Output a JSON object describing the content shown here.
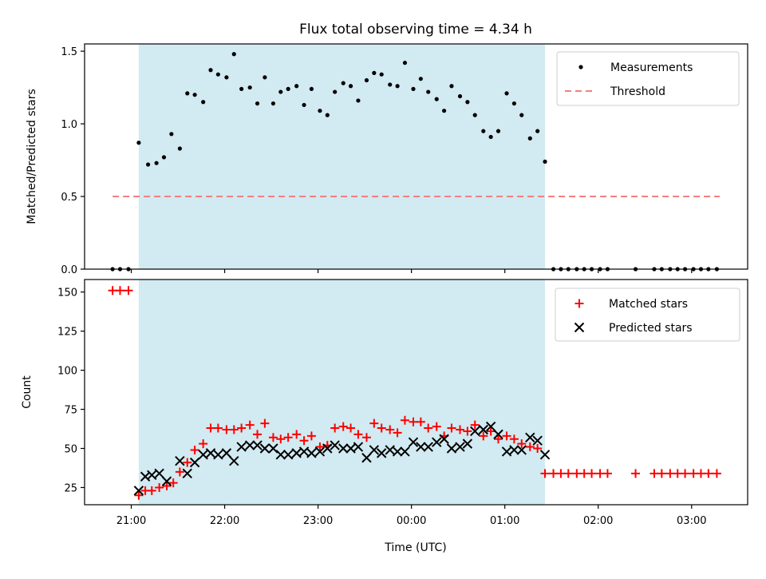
{
  "chart_data": {
    "title": "Flux total observing time = 4.34 h",
    "xlabel": "Time (UTC)",
    "x_units": "hours relative to 00:00 UTC of the night",
    "xlim": [
      -3.5,
      3.6
    ],
    "xticks": [
      {
        "value": -3,
        "label": "21:00"
      },
      {
        "value": -2,
        "label": "22:00"
      },
      {
        "value": -1,
        "label": "23:00"
      },
      {
        "value": 0,
        "label": "00:00"
      },
      {
        "value": 1,
        "label": "01:00"
      },
      {
        "value": 2,
        "label": "02:00"
      },
      {
        "value": 3,
        "label": "03:00"
      }
    ],
    "observing_window": {
      "start": -2.92,
      "end": 1.43,
      "color": "#add8e6"
    },
    "panels": [
      {
        "type": "scatter",
        "ylabel": "Matched/Predicted stars",
        "ylim": [
          0,
          1.55
        ],
        "yticks": [
          {
            "value": 0,
            "label": "0.0"
          },
          {
            "value": 0.5,
            "label": "0.5"
          },
          {
            "value": 1.0,
            "label": "1.0"
          },
          {
            "value": 1.5,
            "label": "1.5"
          }
        ],
        "legend": {
          "position": "upper right",
          "entries": [
            "Measurements",
            "Threshold"
          ]
        },
        "threshold": {
          "name": "Threshold",
          "value": 0.5,
          "x_range": [
            -3.2,
            3.3
          ],
          "color": "#f08080"
        },
        "series": [
          {
            "name": "Measurements",
            "color": "#000000",
            "marker": "dot",
            "points": [
              [
                -3.2,
                0
              ],
              [
                -3.12,
                0
              ],
              [
                -3.03,
                0
              ],
              [
                -2.92,
                0.87
              ],
              [
                -2.82,
                0.72
              ],
              [
                -2.73,
                0.73
              ],
              [
                -2.65,
                0.77
              ],
              [
                -2.57,
                0.93
              ],
              [
                -2.48,
                0.83
              ],
              [
                -2.4,
                1.21
              ],
              [
                -2.32,
                1.2
              ],
              [
                -2.23,
                1.15
              ],
              [
                -2.15,
                1.37
              ],
              [
                -2.07,
                1.34
              ],
              [
                -1.98,
                1.32
              ],
              [
                -1.9,
                1.48
              ],
              [
                -1.82,
                1.24
              ],
              [
                -1.73,
                1.25
              ],
              [
                -1.65,
                1.14
              ],
              [
                -1.57,
                1.32
              ],
              [
                -1.48,
                1.14
              ],
              [
                -1.4,
                1.22
              ],
              [
                -1.32,
                1.24
              ],
              [
                -1.23,
                1.26
              ],
              [
                -1.15,
                1.13
              ],
              [
                -1.07,
                1.24
              ],
              [
                -0.98,
                1.09
              ],
              [
                -0.9,
                1.06
              ],
              [
                -0.82,
                1.22
              ],
              [
                -0.73,
                1.28
              ],
              [
                -0.65,
                1.26
              ],
              [
                -0.57,
                1.16
              ],
              [
                -0.48,
                1.3
              ],
              [
                -0.4,
                1.35
              ],
              [
                -0.32,
                1.34
              ],
              [
                -0.23,
                1.27
              ],
              [
                -0.15,
                1.26
              ],
              [
                -0.07,
                1.42
              ],
              [
                0.02,
                1.24
              ],
              [
                0.1,
                1.31
              ],
              [
                0.18,
                1.22
              ],
              [
                0.27,
                1.17
              ],
              [
                0.35,
                1.09
              ],
              [
                0.43,
                1.26
              ],
              [
                0.52,
                1.19
              ],
              [
                0.6,
                1.15
              ],
              [
                0.68,
                1.06
              ],
              [
                0.77,
                0.95
              ],
              [
                0.85,
                0.91
              ],
              [
                0.93,
                0.95
              ],
              [
                1.02,
                1.21
              ],
              [
                1.1,
                1.14
              ],
              [
                1.18,
                1.06
              ],
              [
                1.27,
                0.9
              ],
              [
                1.35,
                0.95
              ],
              [
                1.43,
                0.74
              ],
              [
                1.52,
                0
              ],
              [
                1.6,
                0
              ],
              [
                1.68,
                0
              ],
              [
                1.77,
                0
              ],
              [
                1.85,
                0
              ],
              [
                1.93,
                0
              ],
              [
                2.02,
                0
              ],
              [
                2.1,
                0
              ],
              [
                2.4,
                0
              ],
              [
                2.6,
                0
              ],
              [
                2.68,
                0
              ],
              [
                2.77,
                0
              ],
              [
                2.85,
                0
              ],
              [
                2.93,
                0
              ],
              [
                3.02,
                0
              ],
              [
                3.1,
                0
              ],
              [
                3.18,
                0
              ],
              [
                3.27,
                0
              ]
            ]
          }
        ]
      },
      {
        "type": "scatter",
        "ylabel": "Count",
        "ylim": [
          14,
          158
        ],
        "yticks": [
          {
            "value": 25,
            "label": "25"
          },
          {
            "value": 50,
            "label": "50"
          },
          {
            "value": 75,
            "label": "75"
          },
          {
            "value": 100,
            "label": "100"
          },
          {
            "value": 125,
            "label": "125"
          },
          {
            "value": 150,
            "label": "150"
          }
        ],
        "legend": {
          "position": "upper right",
          "entries": [
            "Matched stars",
            "Predicted stars"
          ]
        },
        "series": [
          {
            "name": "Matched stars",
            "color": "#ff0000",
            "marker": "plus",
            "points": [
              [
                -3.2,
                151
              ],
              [
                -3.12,
                151
              ],
              [
                -3.03,
                151
              ],
              [
                -2.92,
                20
              ],
              [
                -2.85,
                23
              ],
              [
                -2.78,
                23
              ],
              [
                -2.7,
                25
              ],
              [
                -2.62,
                26
              ],
              [
                -2.55,
                28
              ],
              [
                -2.48,
                35
              ],
              [
                -2.4,
                41
              ],
              [
                -2.32,
                49
              ],
              [
                -2.23,
                53
              ],
              [
                -2.15,
                63
              ],
              [
                -2.07,
                63
              ],
              [
                -1.98,
                62
              ],
              [
                -1.9,
                62
              ],
              [
                -1.82,
                63
              ],
              [
                -1.73,
                65
              ],
              [
                -1.65,
                59
              ],
              [
                -1.57,
                66
              ],
              [
                -1.48,
                57
              ],
              [
                -1.4,
                56
              ],
              [
                -1.32,
                57
              ],
              [
                -1.23,
                59
              ],
              [
                -1.15,
                55
              ],
              [
                -1.07,
                58
              ],
              [
                -0.98,
                51
              ],
              [
                -0.9,
                52
              ],
              [
                -0.82,
                63
              ],
              [
                -0.73,
                64
              ],
              [
                -0.65,
                63
              ],
              [
                -0.57,
                59
              ],
              [
                -0.48,
                57
              ],
              [
                -0.4,
                66
              ],
              [
                -0.32,
                63
              ],
              [
                -0.23,
                62
              ],
              [
                -0.15,
                60
              ],
              [
                -0.07,
                68
              ],
              [
                0.02,
                67
              ],
              [
                0.1,
                67
              ],
              [
                0.18,
                63
              ],
              [
                0.27,
                64
              ],
              [
                0.35,
                58
              ],
              [
                0.43,
                63
              ],
              [
                0.52,
                62
              ],
              [
                0.6,
                61
              ],
              [
                0.68,
                65
              ],
              [
                0.77,
                58
              ],
              [
                0.85,
                61
              ],
              [
                0.93,
                56
              ],
              [
                1.02,
                58
              ],
              [
                1.1,
                56
              ],
              [
                1.18,
                53
              ],
              [
                1.27,
                51
              ],
              [
                1.35,
                50
              ],
              [
                1.43,
                34
              ],
              [
                1.52,
                34
              ],
              [
                1.6,
                34
              ],
              [
                1.68,
                34
              ],
              [
                1.77,
                34
              ],
              [
                1.85,
                34
              ],
              [
                1.93,
                34
              ],
              [
                2.02,
                34
              ],
              [
                2.1,
                34
              ],
              [
                2.4,
                34
              ],
              [
                2.6,
                34
              ],
              [
                2.68,
                34
              ],
              [
                2.77,
                34
              ],
              [
                2.85,
                34
              ],
              [
                2.93,
                34
              ],
              [
                3.02,
                34
              ],
              [
                3.1,
                34
              ],
              [
                3.18,
                34
              ],
              [
                3.27,
                34
              ]
            ]
          },
          {
            "name": "Predicted stars",
            "color": "#000000",
            "marker": "x",
            "points": [
              [
                -2.92,
                23
              ],
              [
                -2.85,
                32
              ],
              [
                -2.78,
                33
              ],
              [
                -2.7,
                34
              ],
              [
                -2.62,
                29
              ],
              [
                -2.48,
                42
              ],
              [
                -2.4,
                34
              ],
              [
                -2.32,
                41
              ],
              [
                -2.23,
                46
              ],
              [
                -2.15,
                47
              ],
              [
                -2.07,
                46
              ],
              [
                -1.98,
                47
              ],
              [
                -1.9,
                42
              ],
              [
                -1.82,
                51
              ],
              [
                -1.73,
                52
              ],
              [
                -1.65,
                52
              ],
              [
                -1.57,
                50
              ],
              [
                -1.48,
                50
              ],
              [
                -1.4,
                46
              ],
              [
                -1.32,
                46
              ],
              [
                -1.23,
                47
              ],
              [
                -1.15,
                48
              ],
              [
                -1.07,
                47
              ],
              [
                -0.98,
                48
              ],
              [
                -0.9,
                50
              ],
              [
                -0.82,
                52
              ],
              [
                -0.73,
                50
              ],
              [
                -0.65,
                50
              ],
              [
                -0.57,
                51
              ],
              [
                -0.48,
                44
              ],
              [
                -0.4,
                49
              ],
              [
                -0.32,
                47
              ],
              [
                -0.23,
                49
              ],
              [
                -0.15,
                48
              ],
              [
                -0.07,
                48
              ],
              [
                0.02,
                54
              ],
              [
                0.1,
                51
              ],
              [
                0.18,
                51
              ],
              [
                0.27,
                54
              ],
              [
                0.35,
                56
              ],
              [
                0.43,
                50
              ],
              [
                0.52,
                51
              ],
              [
                0.6,
                53
              ],
              [
                0.68,
                61
              ],
              [
                0.77,
                62
              ],
              [
                0.85,
                64
              ],
              [
                0.93,
                59
              ],
              [
                1.02,
                48
              ],
              [
                1.1,
                49
              ],
              [
                1.18,
                49
              ],
              [
                1.27,
                57
              ],
              [
                1.35,
                55
              ],
              [
                1.43,
                46
              ]
            ]
          }
        ]
      }
    ]
  }
}
